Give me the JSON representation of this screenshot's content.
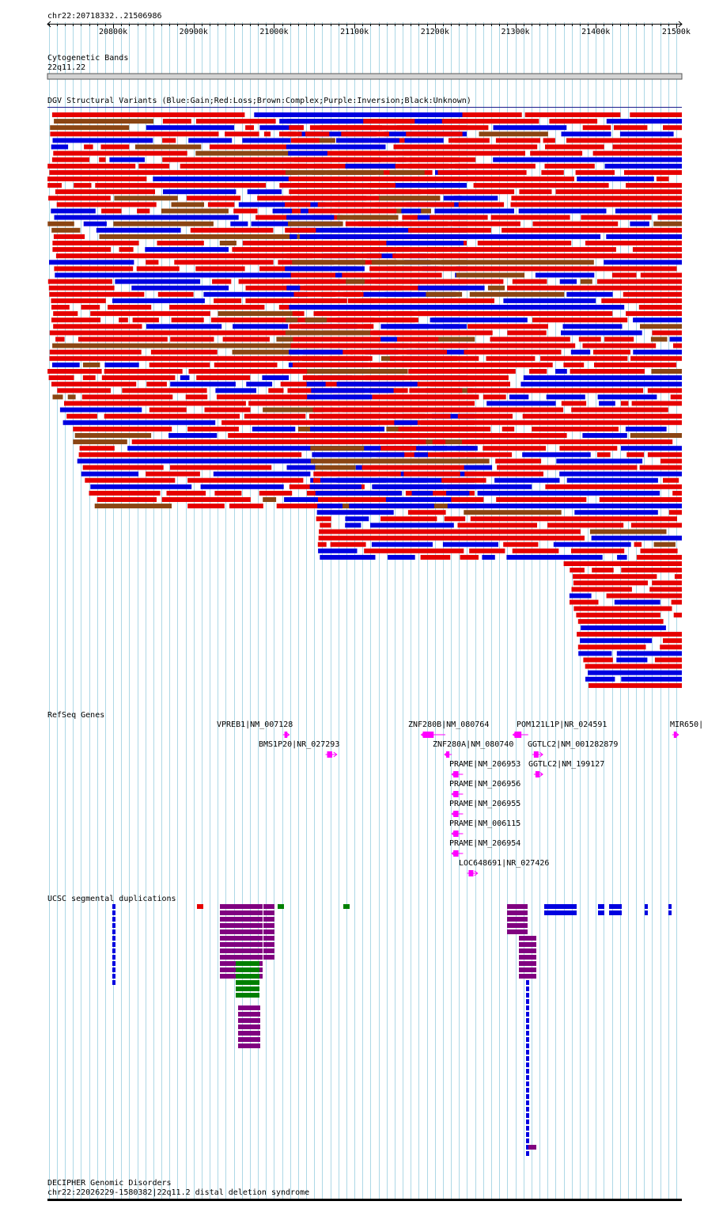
{
  "region": {
    "chrom": "chr22",
    "start": 20718332,
    "end": 21506986,
    "label": "chr22:20718332..21506986"
  },
  "ruler": {
    "ticks": [
      {
        "pos": 20800000,
        "label": "20800k"
      },
      {
        "pos": 20900000,
        "label": "20900k"
      },
      {
        "pos": 21000000,
        "label": "21000k"
      },
      {
        "pos": 21100000,
        "label": "21100k"
      },
      {
        "pos": 21200000,
        "label": "21200k"
      },
      {
        "pos": 21300000,
        "label": "21300k"
      },
      {
        "pos": 21400000,
        "label": "21400k"
      },
      {
        "pos": 21500000,
        "label": "21500k"
      }
    ]
  },
  "tracks": {
    "cytoband": {
      "title": "Cytogenetic Bands",
      "band_label": "22q11.22",
      "band_color": "#d3d3d3"
    },
    "dgv": {
      "title": "DGV Structural Variants (Blue:Gain;Red:Loss;Brown:Complex;Purple:Inversion;Black:Unknown)",
      "colors": {
        "gain": "#0000e0",
        "loss": "#e60000",
        "complex": "#8b4513",
        "inversion": "#800080",
        "unknown": "#000000"
      }
    },
    "refseq": {
      "title": "RefSeq Genes",
      "color": "#ff00ff",
      "genes": [
        {
          "label": "VPREB1|NM_007128",
          "start": 21011000,
          "end": 21012500,
          "strand": "+"
        },
        {
          "label": "BMS1P20|NR_027293",
          "start": 21064000,
          "end": 21078000,
          "strand": "+"
        },
        {
          "label": "ZNF280B|NM_080764",
          "start": 21183000,
          "end": 21213000,
          "strand": "-"
        },
        {
          "label": "ZNF280A|NM_080740",
          "start": 21212000,
          "end": 21221000,
          "strand": "-"
        },
        {
          "label": "PRAME|NM_206953",
          "start": 21221000,
          "end": 21235000,
          "strand": "-"
        },
        {
          "label": "PRAME|NM_206956",
          "start": 21221000,
          "end": 21235000,
          "strand": "-"
        },
        {
          "label": "PRAME|NM_206955",
          "start": 21221000,
          "end": 21235000,
          "strand": "-"
        },
        {
          "label": "PRAME|NM_006115",
          "start": 21221000,
          "end": 21235000,
          "strand": "-"
        },
        {
          "label": "PRAME|NM_206954",
          "start": 21221000,
          "end": 21235000,
          "strand": "-"
        },
        {
          "label": "LOC648691|NR_027426",
          "start": 21240000,
          "end": 21253000,
          "strand": "+"
        },
        {
          "label": "POM121L1P|NR_024591",
          "start": 21297000,
          "end": 21316000,
          "strand": "-"
        },
        {
          "label": "GGTLC2|NM_001282879",
          "start": 21321000,
          "end": 21334000,
          "strand": "+"
        },
        {
          "label": "GGTLC2|NM_199127",
          "start": 21323000,
          "end": 21334000,
          "strand": "+"
        },
        {
          "label": "MIR650|",
          "start": 21495000,
          "end": 21502000,
          "strand": "+"
        }
      ]
    },
    "segdup": {
      "title": "UCSC segmental duplications",
      "colors": {
        "purple": "#800080",
        "blue": "#0000e0",
        "green": "#008000",
        "red": "#e60000"
      }
    },
    "decipher": {
      "title": "DECIPHER Genomic Disorders",
      "item_label": "chr22:22026229-1580382|22q11.2 distal deletion syndrome",
      "color": "#000000"
    }
  }
}
